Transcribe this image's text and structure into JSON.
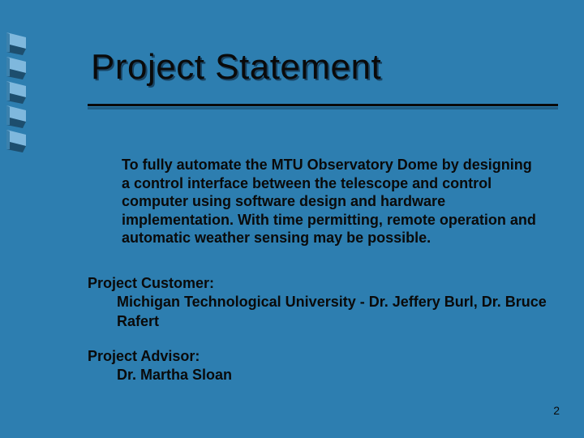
{
  "slide": {
    "background_color": "#2d7eb0",
    "title": "Project Statement",
    "title_color": "#0a0a0a",
    "title_shadow_color": "rgba(10,30,50,0.6)",
    "title_fontsize": 44,
    "underline_color": "#0a0a0a",
    "underline_shadow_color": "#1f5d85",
    "body": "To fully automate the MTU Observatory Dome by designing a control interface between the telescope and control computer using software design and hardware implementation.  With time permitting, remote operation and automatic weather sensing may be possible.",
    "body_color": "#0a0a0a",
    "body_fontsize": 18,
    "sections": {
      "customer": {
        "label": "Project Customer:",
        "value": "Michigan Technological University - Dr. Jeffery Burl, Dr. Bruce Rafert"
      },
      "advisor": {
        "label": "Project Advisor:",
        "value": "Dr. Martha Sloan"
      }
    },
    "page_number": "2",
    "ribbon": {
      "segment_count": 5,
      "segment_tops": [
        40,
        70,
        100,
        130,
        160
      ],
      "light_color": "#7fb8dd",
      "dark_color": "#1d4e6e",
      "mid_color": "#3b81ad"
    }
  }
}
